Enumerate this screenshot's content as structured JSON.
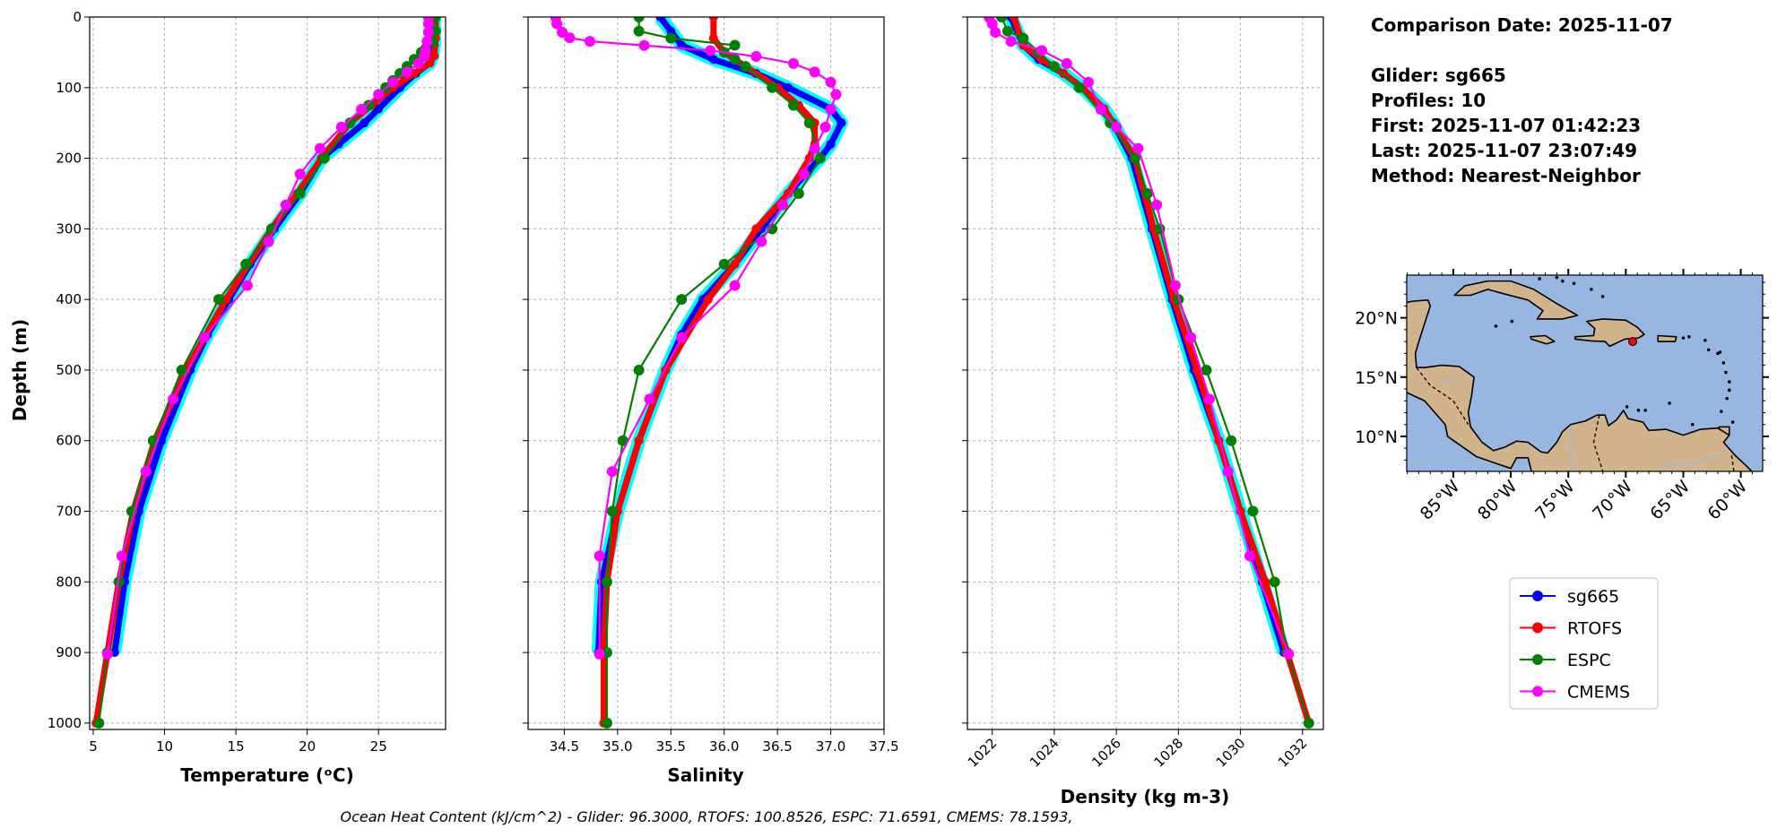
{
  "info": {
    "comparison_date": "Comparison Date: 2025-11-07",
    "glider": "Glider: sg665",
    "profiles": "Profiles: 10",
    "first": "First: 2025-11-07 01:42:23",
    "last": "Last: 2025-11-07 23:07:49",
    "method": "Method: Nearest-Neighbor"
  },
  "caption": "Ocean Heat Content (kJ/cm^2) - Glider: 96.3000,  RTOFS: 100.8526,  ESPC: 71.6591,  CMEMS: 78.1593,",
  "legend": [
    {
      "name": "sg665",
      "color": "#0000ff"
    },
    {
      "name": "RTOFS",
      "color": "#ff0000"
    },
    {
      "name": "ESPC",
      "color": "#008000"
    },
    {
      "name": "CMEMS",
      "color": "#ff00ff"
    }
  ],
  "colors": {
    "glider_profiles": "#00ffff",
    "land": "#d2b48c",
    "ocean": "#97b6e1",
    "grid": "#b0b0b0"
  },
  "chart_data": [
    {
      "type": "line",
      "xlabel": "Temperature (ᵒC)",
      "ylabel": "Depth (m)",
      "xlim": [
        4.75,
        29.7
      ],
      "ylim": [
        1009,
        0
      ],
      "xticks": [
        "5",
        "10",
        "15",
        "20",
        "25"
      ],
      "xtick_values": [
        5,
        10,
        15,
        20,
        25
      ],
      "yticks": [
        "0",
        "100",
        "200",
        "300",
        "400",
        "500",
        "600",
        "700",
        "800",
        "900",
        "1000"
      ],
      "ytick_values": [
        0,
        100,
        200,
        300,
        400,
        500,
        600,
        700,
        800,
        900,
        1000
      ],
      "grid": true,
      "series": [
        {
          "name": "sg665",
          "depth": [
            0,
            20,
            40,
            55,
            65,
            80,
            100,
            130,
            150,
            180,
            200,
            250,
            300,
            350,
            400,
            450,
            500,
            600,
            700,
            800,
            900
          ],
          "values": [
            28.9,
            28.9,
            28.9,
            28.8,
            28.6,
            27.6,
            26.5,
            25.0,
            24.0,
            22.2,
            21.0,
            19.5,
            17.7,
            16.0,
            14.5,
            13.0,
            11.8,
            9.8,
            8.2,
            7.2,
            6.5
          ]
        },
        {
          "name": "RTOFS",
          "depth": [
            0,
            30,
            55,
            65,
            80,
            100,
            125,
            150,
            200,
            250,
            300,
            400,
            500,
            600,
            700,
            800,
            900,
            1000
          ],
          "values": [
            29.0,
            29.0,
            28.9,
            28.6,
            27.5,
            26.0,
            24.5,
            23.0,
            21.0,
            19.3,
            17.5,
            14.3,
            11.5,
            9.3,
            7.8,
            6.8,
            6.0,
            5.2
          ]
        },
        {
          "name": "ESPC",
          "depth": [
            0,
            20,
            35,
            45,
            50,
            60,
            70,
            80,
            90,
            100,
            125,
            150,
            200,
            250,
            300,
            350,
            400,
            500,
            600,
            700,
            800,
            900,
            1000
          ],
          "values": [
            29.0,
            29.0,
            28.8,
            28.3,
            28.0,
            27.5,
            27.0,
            26.5,
            26.0,
            25.5,
            24.3,
            23.0,
            21.2,
            19.5,
            17.5,
            15.7,
            13.8,
            11.2,
            9.2,
            7.7,
            6.8,
            6.0,
            5.4
          ]
        },
        {
          "name": "CMEMS",
          "depth": [
            0.5,
            9.6,
            21.6,
            34.4,
            47.4,
            55.8,
            65.8,
            77.9,
            92.3,
            109.7,
            130.7,
            155.9,
            186.1,
            222.5,
            266.0,
            318.1,
            380.2,
            453.9,
            541.1,
            643.6,
            763.3,
            902.3
          ],
          "values": [
            28.5,
            28.5,
            28.5,
            28.4,
            28.3,
            28.2,
            27.8,
            27.0,
            26.0,
            25.0,
            23.8,
            22.4,
            20.9,
            19.5,
            18.5,
            17.3,
            15.8,
            12.8,
            10.6,
            8.7,
            7.0,
            6.0
          ]
        }
      ]
    },
    {
      "type": "line",
      "xlabel": "Salinity",
      "ylabel": "",
      "xlim": [
        34.16,
        37.5
      ],
      "ylim": [
        1009,
        0
      ],
      "xticks": [
        "34.5",
        "35.0",
        "35.5",
        "36.0",
        "36.5",
        "37.0",
        "37.5"
      ],
      "xtick_values": [
        34.5,
        35.0,
        35.5,
        36.0,
        36.5,
        37.0,
        37.5
      ],
      "yticks": [],
      "ytick_values": [
        0,
        100,
        200,
        300,
        400,
        500,
        600,
        700,
        800,
        900,
        1000
      ],
      "grid": true,
      "series": [
        {
          "name": "sg665",
          "depth": [
            0,
            20,
            40,
            60,
            80,
            100,
            130,
            150,
            180,
            200,
            250,
            300,
            350,
            400,
            450,
            500,
            600,
            700,
            800,
            900
          ],
          "values": [
            35.4,
            35.5,
            35.6,
            35.9,
            36.3,
            36.6,
            37.0,
            37.1,
            37.0,
            36.9,
            36.6,
            36.35,
            36.1,
            35.8,
            35.6,
            35.45,
            35.2,
            35.0,
            34.85,
            34.82
          ]
        },
        {
          "name": "RTOFS",
          "depth": [
            0,
            30,
            50,
            70,
            100,
            125,
            150,
            180,
            200,
            250,
            300,
            350,
            400,
            500,
            600,
            700,
            800,
            900,
            1000
          ],
          "values": [
            35.9,
            35.9,
            36.0,
            36.2,
            36.5,
            36.7,
            36.85,
            36.85,
            36.8,
            36.6,
            36.3,
            36.1,
            35.85,
            35.45,
            35.2,
            35.0,
            34.9,
            34.87,
            34.87
          ]
        },
        {
          "name": "ESPC",
          "depth": [
            0,
            20,
            30,
            40,
            50,
            60,
            70,
            100,
            125,
            150,
            200,
            250,
            300,
            350,
            400,
            500,
            600,
            700,
            800,
            900,
            1000
          ],
          "values": [
            35.2,
            35.2,
            35.5,
            36.1,
            36.0,
            36.1,
            36.2,
            36.45,
            36.65,
            36.8,
            36.9,
            36.7,
            36.45,
            36.0,
            35.6,
            35.2,
            35.05,
            34.95,
            34.9,
            34.9,
            34.9
          ]
        },
        {
          "name": "CMEMS",
          "depth": [
            0.5,
            9.6,
            21.6,
            29.4,
            34.4,
            40.3,
            47.4,
            55.8,
            65.8,
            77.9,
            92.3,
            109.7,
            130.7,
            155.9,
            186.1,
            222.5,
            266.0,
            318.1,
            380.2,
            453.9,
            541.1,
            643.6,
            763.3,
            902.3
          ],
          "values": [
            34.42,
            34.43,
            34.48,
            34.55,
            34.74,
            35.25,
            35.87,
            36.3,
            36.65,
            36.85,
            37.0,
            37.05,
            37.0,
            36.95,
            36.85,
            36.75,
            36.55,
            36.35,
            36.1,
            35.6,
            35.3,
            34.95,
            34.83,
            34.83
          ]
        }
      ]
    },
    {
      "type": "line",
      "xlabel": "Density (kg m-3)",
      "ylabel": "",
      "xlim": [
        1021.2,
        1032.67
      ],
      "ylim": [
        1009,
        0
      ],
      "xticks": [
        "1022",
        "1024",
        "1026",
        "1028",
        "1030",
        "1032"
      ],
      "xtick_values": [
        1022,
        1024,
        1026,
        1028,
        1030,
        1032
      ],
      "yticks": [],
      "ytick_values": [
        0,
        100,
        200,
        300,
        400,
        500,
        600,
        700,
        800,
        900,
        1000
      ],
      "grid": true,
      "series": [
        {
          "name": "sg665",
          "depth": [
            0,
            40,
            60,
            80,
            100,
            130,
            150,
            200,
            300,
            400,
            500,
            600,
            700,
            800,
            900
          ],
          "values": [
            1022.6,
            1023.0,
            1023.5,
            1024.3,
            1024.9,
            1025.6,
            1025.9,
            1026.5,
            1027.15,
            1027.8,
            1028.5,
            1029.3,
            1030.0,
            1030.7,
            1031.4
          ]
        },
        {
          "name": "RTOFS",
          "depth": [
            0,
            40,
            60,
            80,
            100,
            130,
            150,
            200,
            300,
            400,
            500,
            600,
            700,
            800,
            900,
            1000
          ],
          "values": [
            1022.7,
            1023.0,
            1023.6,
            1024.3,
            1024.9,
            1025.6,
            1025.9,
            1026.6,
            1027.2,
            1027.85,
            1028.6,
            1029.3,
            1030.0,
            1030.8,
            1031.5,
            1032.2
          ]
        },
        {
          "name": "ESPC",
          "depth": [
            0,
            20,
            30,
            50,
            70,
            100,
            150,
            200,
            250,
            300,
            400,
            500,
            600,
            700,
            800,
            900,
            1000
          ],
          "values": [
            1022.3,
            1022.5,
            1023.0,
            1023.5,
            1024.0,
            1024.8,
            1025.8,
            1026.6,
            1027.0,
            1027.4,
            1028.0,
            1028.9,
            1029.7,
            1030.4,
            1031.1,
            1031.5,
            1032.2
          ]
        },
        {
          "name": "CMEMS",
          "depth": [
            0.5,
            9.6,
            21.6,
            34.4,
            47.4,
            65.8,
            92.3,
            130.7,
            155.9,
            186.1,
            266.0,
            380.2,
            453.9,
            541.1,
            643.6,
            763.3,
            902.3
          ],
          "values": [
            1021.9,
            1022.0,
            1022.1,
            1022.6,
            1023.6,
            1024.4,
            1025.1,
            1025.5,
            1026.0,
            1026.7,
            1027.3,
            1027.9,
            1028.4,
            1029.0,
            1029.6,
            1030.3,
            1031.55
          ]
        }
      ]
    }
  ],
  "map": {
    "lon_range": [
      -89.05,
      -58.1
    ],
    "lat_range": [
      7.05,
      23.6
    ],
    "lat_ticks": [
      "20°N",
      "15°N",
      "10°N"
    ],
    "lat_tick_values": [
      20,
      15,
      10
    ],
    "lon_ticks": [
      "85°W",
      "80°W",
      "75°W",
      "70°W",
      "65°W",
      "60°W"
    ],
    "lon_tick_values": [
      -85,
      -80,
      -75,
      -70,
      -65,
      -60
    ],
    "glider_location": {
      "lon": -69.4,
      "lat": 18.0
    }
  }
}
